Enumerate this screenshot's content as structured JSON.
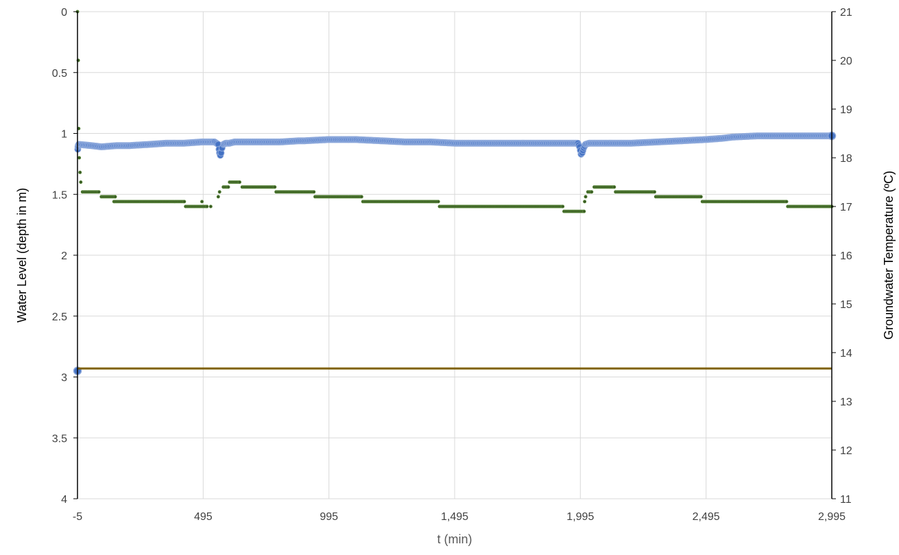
{
  "chart_data": {
    "type": "scatter",
    "title": "",
    "xlabel": "t (min)",
    "ylabel_left": "Water Level (depth in m)",
    "ylabel_right": "Groundwater Temperature (ºC)",
    "xlim": [
      -5,
      2995
    ],
    "x_ticks": [
      -5,
      495,
      995,
      1495,
      1995,
      2495,
      2995
    ],
    "x_tick_labels": [
      "-5",
      "495",
      "995",
      "1,495",
      "1,995",
      "2,495",
      "2,995"
    ],
    "y_left_lim": [
      0,
      4
    ],
    "y_left_reversed": true,
    "y_left_ticks": [
      0,
      0.5,
      1,
      1.5,
      2,
      2.5,
      3,
      3.5,
      4
    ],
    "y_left_tick_labels": [
      "0",
      "0.5",
      "1",
      "1.5",
      "2",
      "2.5",
      "3",
      "3.5",
      "4"
    ],
    "y_right_lim": [
      11,
      21
    ],
    "y_right_ticks": [
      11,
      12,
      13,
      14,
      15,
      16,
      17,
      18,
      19,
      20,
      21
    ],
    "y_right_tick_labels": [
      "11",
      "12",
      "13",
      "14",
      "15",
      "16",
      "17",
      "18",
      "19",
      "20",
      "21"
    ],
    "grid": true,
    "legend": "none",
    "series": [
      {
        "axis": "left",
        "color": "#4472C4",
        "marker": "circle",
        "points": [
          [
            -5,
            2.95
          ],
          [
            -4,
            1.13
          ],
          [
            -3,
            1.11
          ],
          [
            -2,
            1.1
          ],
          [
            0,
            1.09
          ],
          [
            50,
            1.1
          ],
          [
            90,
            1.11
          ],
          [
            150,
            1.1
          ],
          [
            200,
            1.1
          ],
          [
            280,
            1.09
          ],
          [
            350,
            1.08
          ],
          [
            420,
            1.08
          ],
          [
            490,
            1.07
          ],
          [
            540,
            1.07
          ],
          [
            555,
            1.09
          ],
          [
            558,
            1.13
          ],
          [
            560,
            1.16
          ],
          [
            563,
            1.18
          ],
          [
            566,
            1.16
          ],
          [
            570,
            1.12
          ],
          [
            575,
            1.09
          ],
          [
            585,
            1.08
          ],
          [
            600,
            1.08
          ],
          [
            620,
            1.07
          ],
          [
            700,
            1.07
          ],
          [
            800,
            1.07
          ],
          [
            880,
            1.06
          ],
          [
            900,
            1.06
          ],
          [
            995,
            1.05
          ],
          [
            1100,
            1.05
          ],
          [
            1200,
            1.06
          ],
          [
            1300,
            1.07
          ],
          [
            1400,
            1.07
          ],
          [
            1495,
            1.08
          ],
          [
            1600,
            1.08
          ],
          [
            1700,
            1.08
          ],
          [
            1800,
            1.08
          ],
          [
            1900,
            1.08
          ],
          [
            1985,
            1.08
          ],
          [
            1992,
            1.11
          ],
          [
            1995,
            1.14
          ],
          [
            1998,
            1.17
          ],
          [
            2002,
            1.16
          ],
          [
            2008,
            1.12
          ],
          [
            2015,
            1.09
          ],
          [
            2030,
            1.08
          ],
          [
            2100,
            1.08
          ],
          [
            2200,
            1.08
          ],
          [
            2300,
            1.07
          ],
          [
            2400,
            1.06
          ],
          [
            2495,
            1.05
          ],
          [
            2560,
            1.04
          ],
          [
            2600,
            1.03
          ],
          [
            2700,
            1.02
          ],
          [
            2800,
            1.02
          ],
          [
            2900,
            1.02
          ],
          [
            2995,
            1.02
          ]
        ]
      },
      {
        "axis": "right",
        "color": "#375623",
        "marker": "small-circle",
        "points": [
          [
            -5,
            21.0
          ],
          [
            -2,
            20.0
          ],
          [
            0,
            18.6
          ],
          [
            2,
            18.0
          ],
          [
            5,
            17.7
          ],
          [
            8,
            17.5
          ],
          [
            15,
            17.3
          ],
          [
            80,
            17.3
          ],
          [
            90,
            17.2
          ],
          [
            145,
            17.2
          ],
          [
            140,
            17.1
          ],
          [
            145,
            17.1
          ],
          [
            420,
            17.1
          ],
          [
            425,
            17.0
          ],
          [
            510,
            17.0
          ],
          [
            490,
            17.1
          ],
          [
            525,
            17.0
          ],
          [
            555,
            17.2
          ],
          [
            560,
            17.3
          ],
          [
            575,
            17.4
          ],
          [
            595,
            17.4
          ],
          [
            600,
            17.5
          ],
          [
            640,
            17.5
          ],
          [
            650,
            17.4
          ],
          [
            780,
            17.4
          ],
          [
            785,
            17.3
          ],
          [
            935,
            17.3
          ],
          [
            940,
            17.2
          ],
          [
            1125,
            17.2
          ],
          [
            1130,
            17.1
          ],
          [
            1430,
            17.1
          ],
          [
            1435,
            17.0
          ],
          [
            1925,
            17.0
          ],
          [
            1930,
            16.9
          ],
          [
            2010,
            16.9
          ],
          [
            2012,
            17.1
          ],
          [
            2016,
            17.2
          ],
          [
            2025,
            17.3
          ],
          [
            2040,
            17.3
          ],
          [
            2050,
            17.4
          ],
          [
            2130,
            17.4
          ],
          [
            2135,
            17.3
          ],
          [
            2290,
            17.3
          ],
          [
            2295,
            17.2
          ],
          [
            2475,
            17.2
          ],
          [
            2480,
            17.1
          ],
          [
            2815,
            17.1
          ],
          [
            2820,
            17.0
          ],
          [
            2995,
            17.0
          ]
        ]
      },
      {
        "axis": "left",
        "color": "#7F6000",
        "marker": "line",
        "points": [
          [
            -5,
            2.93
          ],
          [
            2995,
            2.93
          ]
        ]
      }
    ]
  }
}
